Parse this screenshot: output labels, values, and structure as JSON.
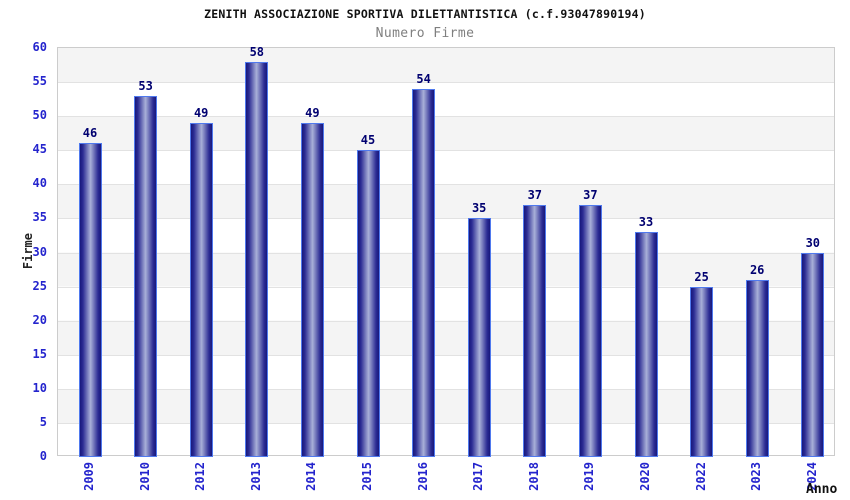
{
  "header": {
    "title": "ZENITH ASSOCIAZIONE SPORTIVA DILETTANTISTICA (c.f.93047890194)",
    "subtitle": "Numero Firme"
  },
  "chart_data": {
    "type": "bar",
    "title": "ZENITH ASSOCIAZIONE SPORTIVA DILETTANTISTICA (c.f.93047890194)",
    "subtitle": "Numero Firme",
    "xlabel": "Anno",
    "ylabel": "Firme",
    "categories": [
      "2009",
      "2010",
      "2012",
      "2013",
      "2014",
      "2015",
      "2016",
      "2017",
      "2018",
      "2019",
      "2020",
      "2022",
      "2023",
      "2024"
    ],
    "values": [
      46,
      53,
      49,
      58,
      49,
      45,
      54,
      35,
      37,
      37,
      33,
      25,
      26,
      30
    ],
    "ylim": [
      0,
      60
    ],
    "ytick_step": 5,
    "yticks": [
      0,
      5,
      10,
      15,
      20,
      25,
      30,
      35,
      40,
      45,
      50,
      55,
      60
    ],
    "grid": true,
    "legend_position": "none",
    "band_style": "alternating-horizontal",
    "colors": {
      "bar_dark": "#18187c",
      "bar_light": "#a9b0d8",
      "bar_border": "#4f79ee",
      "tick_label": "#2424cd",
      "value_label": "#000070",
      "title": "#111111",
      "subtitle": "#7f7f7f",
      "band_gray": "#f4f4f4",
      "band_white": "#ffffff",
      "gridline": "#e2e2e2",
      "plot_border": "#cccccc"
    }
  }
}
